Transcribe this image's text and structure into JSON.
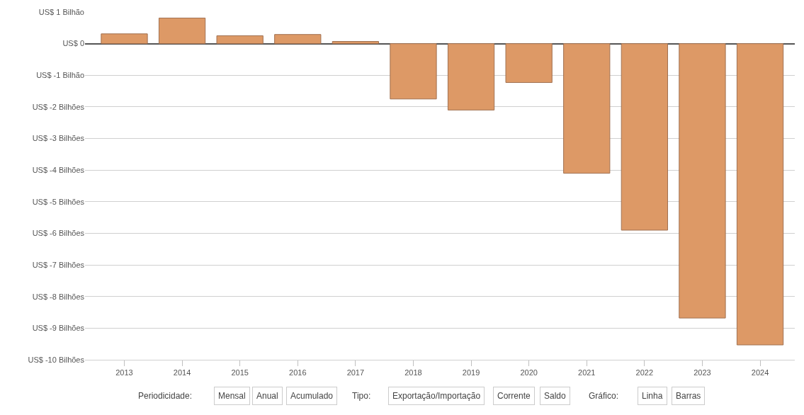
{
  "chart_data": {
    "type": "bar",
    "categories": [
      "2013",
      "2014",
      "2015",
      "2016",
      "2017",
      "2018",
      "2019",
      "2020",
      "2021",
      "2022",
      "2023",
      "2024"
    ],
    "values": [
      0.31,
      0.81,
      0.25,
      0.29,
      0.07,
      -1.75,
      -2.1,
      -1.23,
      -4.1,
      -5.9,
      -8.68,
      -9.53
    ],
    "color": "#dd9966",
    "ylim": [
      -10,
      1
    ],
    "yticks": [
      {
        "value": 1,
        "label": "US$ 1 Bilhão"
      },
      {
        "value": 0,
        "label": "US$ 0"
      },
      {
        "value": -1,
        "label": "US$ -1 Bilhão"
      },
      {
        "value": -2,
        "label": "US$ -2 Bilhões"
      },
      {
        "value": -3,
        "label": "US$ -3 Bilhões"
      },
      {
        "value": -4,
        "label": "US$ -4 Bilhões"
      },
      {
        "value": -5,
        "label": "US$ -5 Bilhões"
      },
      {
        "value": -6,
        "label": "US$ -6 Bilhões"
      },
      {
        "value": -7,
        "label": "US$ -7 Bilhões"
      },
      {
        "value": -8,
        "label": "US$ -8 Bilhões"
      },
      {
        "value": -9,
        "label": "US$ -9 Bilhões"
      },
      {
        "value": -10,
        "label": "US$ -10 Bilhões"
      }
    ],
    "grid": "y",
    "annotations": [
      "Periodicidade:",
      "Mensal",
      "Anual",
      "Acumulado",
      "Tipo:",
      "Exportação/Importação",
      "Corrente",
      "Saldo",
      "Gráfico:",
      "Linha",
      "Barras"
    ]
  }
}
